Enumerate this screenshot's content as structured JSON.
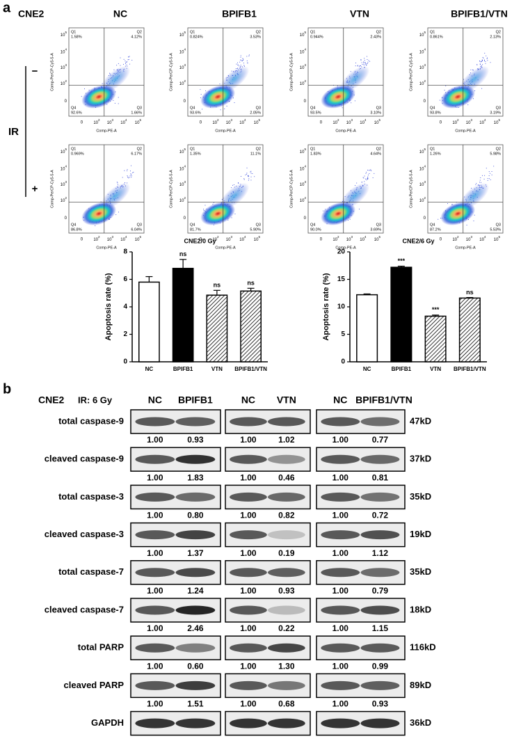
{
  "panel_a": {
    "label": "a",
    "cell_line": "CNE2",
    "groups": [
      "NC",
      "BPIFB1",
      "VTN",
      "BPIFB1/VTN"
    ],
    "ir_label": "IR",
    "ir_levels": [
      "−",
      "+"
    ],
    "flow_x_label": "Comp-PE-A",
    "flow_y_label": "Comp-PerCP-Cy5-5-A",
    "flow_ticks": [
      "0",
      {
        "base": "10",
        "exp": "2"
      },
      {
        "base": "10",
        "exp": "3"
      },
      {
        "base": "10",
        "exp": "4"
      },
      {
        "base": "10",
        "exp": "5"
      }
    ],
    "quadrant_names": [
      "Q1",
      "Q2",
      "Q3",
      "Q4"
    ],
    "flow_plots": [
      [
        [
          "1.58%",
          "4.12%",
          "1.66%",
          "92.6%"
        ],
        [
          "0.824%",
          "3.53%",
          "2.05%",
          "93.6%"
        ],
        [
          "0.944%",
          "2.43%",
          "3.10%",
          "93.5%"
        ],
        [
          "0.861%",
          "2.13%",
          "3.19%",
          "93.8%"
        ]
      ],
      [
        [
          "0.969%",
          "6.17%",
          "6.04%",
          "86.8%"
        ],
        [
          "1.35%",
          "11.1%",
          "5.90%",
          "81.7%"
        ],
        [
          "1.83%",
          "4.64%",
          "3.69%",
          "90.0%"
        ],
        [
          "1.26%",
          "5.98%",
          "5.53%",
          "87.2%"
        ]
      ]
    ]
  },
  "chart_data": [
    {
      "type": "bar",
      "title": "CNE2/0 Gy",
      "ylabel": "Apoptosis rate (%)",
      "categories": [
        "NC",
        "BPIFB1",
        "VTN",
        "BPIFB1/VTN"
      ],
      "values": [
        5.8,
        6.8,
        4.85,
        5.15
      ],
      "errors": [
        0.4,
        0.65,
        0.35,
        0.2
      ],
      "colors": [
        "#ffffff",
        "#000000",
        "#ffffff",
        "#ffffff"
      ],
      "hatched": [
        false,
        false,
        true,
        true
      ],
      "annotations": [
        null,
        "ns",
        "ns",
        "ns"
      ],
      "ylim": [
        0,
        8
      ],
      "yticks": [
        0,
        2,
        4,
        6,
        8
      ]
    },
    {
      "type": "bar",
      "title": "CNE2/6 Gy",
      "ylabel": "Apoptosis rate (%)",
      "categories": [
        "NC",
        "BPIFB1",
        "VTN",
        "BPIFB1/VTN"
      ],
      "values": [
        12.2,
        17.2,
        8.3,
        11.6
      ],
      "errors": [
        0.15,
        0.2,
        0.2,
        0.1
      ],
      "colors": [
        "#ffffff",
        "#000000",
        "#ffffff",
        "#ffffff"
      ],
      "hatched": [
        false,
        false,
        true,
        true
      ],
      "annotations": [
        null,
        "***",
        "***",
        "ns"
      ],
      "ylim": [
        0,
        20
      ],
      "yticks": [
        0,
        5,
        10,
        15,
        20
      ]
    }
  ],
  "panel_b": {
    "label": "b",
    "cell_line": "CNE2",
    "treatment": "IR: 6 Gy",
    "blocks": [
      [
        "NC",
        "BPIFB1"
      ],
      [
        "NC",
        "VTN"
      ],
      [
        "NC",
        "BPIFB1/VTN"
      ]
    ],
    "rows": [
      {
        "protein": "total caspase-9",
        "size": "47kD",
        "ratios": [
          "1.00",
          "0.93",
          "1.00",
          "1.02",
          "1.00",
          "0.77"
        ]
      },
      {
        "protein": "cleaved caspase-9",
        "size": "37kD",
        "ratios": [
          "1.00",
          "1.83",
          "1.00",
          "0.46",
          "1.00",
          "0.81"
        ]
      },
      {
        "protein": "total caspase-3",
        "size": "35kD",
        "ratios": [
          "1.00",
          "0.80",
          "1.00",
          "0.82",
          "1.00",
          "0.72"
        ]
      },
      {
        "protein": "cleaved caspase-3",
        "size": "19kD",
        "ratios": [
          "1.00",
          "1.37",
          "1.00",
          "0.19",
          "1.00",
          "1.12"
        ]
      },
      {
        "protein": "total caspase-7",
        "size": "35kD",
        "ratios": [
          "1.00",
          "1.24",
          "1.00",
          "0.93",
          "1.00",
          "0.79"
        ]
      },
      {
        "protein": "cleaved caspase-7",
        "size": "18kD",
        "ratios": [
          "1.00",
          "2.46",
          "1.00",
          "0.22",
          "1.00",
          "1.15"
        ]
      },
      {
        "protein": "total PARP",
        "size": "116kD",
        "ratios": [
          "1.00",
          "0.60",
          "1.00",
          "1.30",
          "1.00",
          "0.99"
        ]
      },
      {
        "protein": "cleaved PARP",
        "size": "89kD",
        "ratios": [
          "1.00",
          "1.51",
          "1.00",
          "0.68",
          "1.00",
          "0.93"
        ]
      },
      {
        "protein": "GAPDH",
        "size": "36kD"
      }
    ]
  }
}
